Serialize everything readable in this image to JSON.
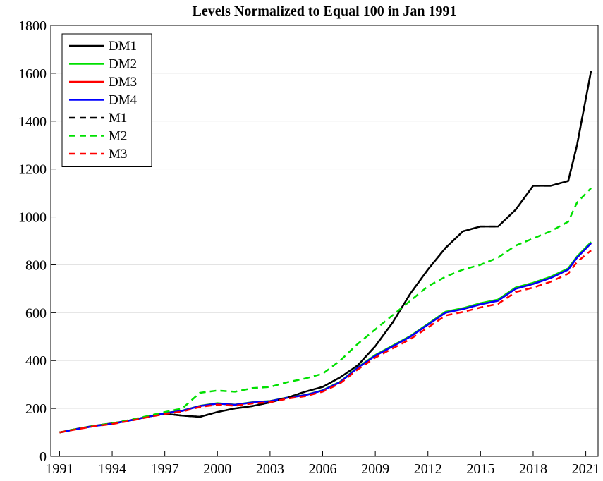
{
  "chart_data": {
    "type": "line",
    "title": "Levels Normalized to Equal 100 in Jan 1991",
    "x": [
      1991,
      1992,
      1993,
      1994,
      1995,
      1996,
      1997,
      1998,
      1999,
      2000,
      2001,
      2002,
      2003,
      2004,
      2005,
      2006,
      2007,
      2008,
      2009,
      2010,
      2011,
      2012,
      2013,
      2014,
      2015,
      2016,
      2017,
      2018,
      2019,
      2020,
      2020.5,
      2021.3
    ],
    "xlim": [
      1990.5,
      2021.7
    ],
    "xticks": [
      1991,
      1994,
      1997,
      2000,
      2003,
      2006,
      2009,
      2012,
      2015,
      2018,
      2021
    ],
    "ylim": [
      0,
      1800
    ],
    "yticks": [
      0,
      200,
      400,
      600,
      800,
      1000,
      1200,
      1400,
      1600,
      1800
    ],
    "grid": true,
    "legend": "upper-left",
    "series": [
      {
        "name": "DM1",
        "color": "#000000",
        "linestyle": "solid",
        "values": [
          100,
          115,
          128,
          138,
          150,
          165,
          178,
          170,
          165,
          185,
          200,
          210,
          225,
          245,
          270,
          290,
          330,
          380,
          460,
          560,
          680,
          780,
          870,
          940,
          960,
          960,
          1030,
          1130,
          1130,
          1150,
          1300,
          1610
        ]
      },
      {
        "name": "DM2",
        "color": "#00e000",
        "linestyle": "solid",
        "values": [
          100,
          114,
          127,
          136,
          150,
          165,
          181,
          191,
          211,
          222,
          216,
          226,
          231,
          246,
          256,
          276,
          312,
          372,
          423,
          463,
          503,
          553,
          604,
          619,
          640,
          655,
          705,
          725,
          750,
          785,
          835,
          895
        ]
      },
      {
        "name": "DM3",
        "color": "#ff0000",
        "linestyle": "solid",
        "values": [
          100,
          114,
          127,
          136,
          150,
          165,
          180,
          190,
          210,
          220,
          215,
          225,
          230,
          245,
          255,
          275,
          310,
          370,
          420,
          460,
          500,
          550,
          600,
          615,
          635,
          650,
          700,
          720,
          745,
          780,
          830,
          890
        ]
      },
      {
        "name": "DM4",
        "color": "#0000ff",
        "linestyle": "solid",
        "values": [
          100,
          114,
          127,
          136,
          150,
          165,
          180,
          190,
          210,
          220,
          215,
          225,
          230,
          245,
          255,
          275,
          310,
          370,
          420,
          460,
          500,
          550,
          600,
          615,
          635,
          650,
          700,
          720,
          745,
          780,
          830,
          890
        ]
      },
      {
        "name": "M1",
        "color": "#000000",
        "linestyle": "dashed",
        "values": [
          100,
          115,
          128,
          138,
          150,
          165,
          178,
          170,
          165,
          185,
          200,
          210,
          225,
          245,
          270,
          290,
          330,
          380,
          460,
          560,
          680,
          780,
          870,
          940,
          960,
          960,
          1030,
          1130,
          1130,
          1150,
          1300,
          1610
        ]
      },
      {
        "name": "M2",
        "color": "#00e000",
        "linestyle": "dashed",
        "values": [
          100,
          115,
          128,
          138,
          152,
          168,
          185,
          200,
          265,
          275,
          270,
          285,
          290,
          310,
          325,
          345,
          400,
          470,
          530,
          590,
          650,
          710,
          750,
          780,
          800,
          830,
          880,
          910,
          940,
          980,
          1060,
          1120
        ]
      },
      {
        "name": "M3",
        "color": "#ff0000",
        "linestyle": "dashed",
        "values": [
          100,
          113,
          126,
          135,
          148,
          163,
          177,
          187,
          206,
          216,
          211,
          221,
          226,
          241,
          251,
          270,
          305,
          363,
          412,
          451,
          490,
          538,
          588,
          603,
          622,
          637,
          686,
          705,
          729,
          763,
          812,
          860
        ]
      }
    ]
  }
}
